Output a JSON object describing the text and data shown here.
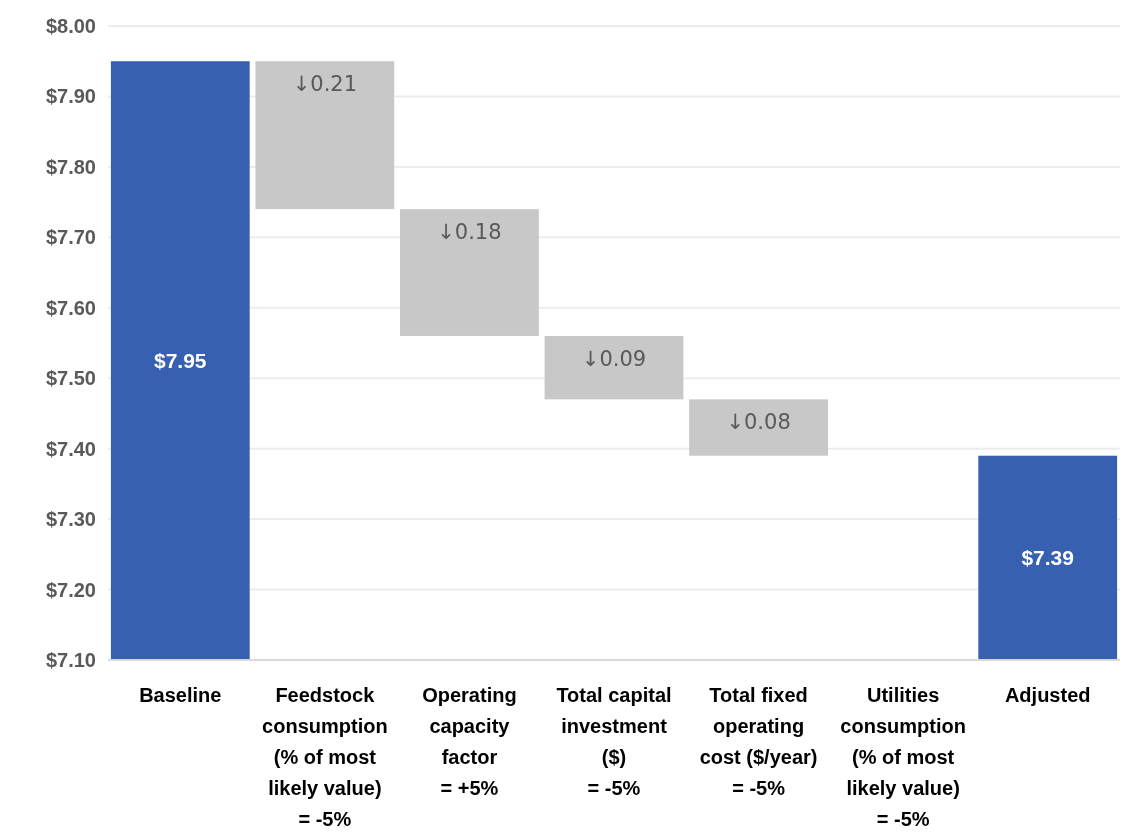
{
  "chart_data": {
    "type": "bar",
    "categories": [
      "Baseline",
      "Feedstock consumption (% of most likely value) = -5%",
      "Operating capacity factor = +5%",
      "Total capital investment ($) = -5%",
      "Total fixed operating cost ($/year) = -5%",
      "Utilities consumption (% of most likely value) = -5%",
      "Adjusted"
    ],
    "values": [
      7.95,
      -0.21,
      -0.18,
      -0.09,
      -0.08,
      null,
      7.39
    ],
    "base": [
      null,
      7.95,
      7.74,
      7.56,
      7.47,
      null,
      null
    ],
    "colors": [
      "#3760b0",
      "#c8c8c8",
      "#c8c8c8",
      "#c8c8c8",
      "#c8c8c8",
      null,
      "#3760b0"
    ],
    "value_labels": [
      "$7.95",
      "↓0.21",
      "↓0.18",
      "↓0.09",
      "↓0.08",
      null,
      "$7.39"
    ],
    "ylim": [
      7.1,
      8.0
    ],
    "yticks": [
      {
        "value": 7.1,
        "label": "$7.10"
      },
      {
        "value": 7.2,
        "label": "$7.20"
      },
      {
        "value": 7.3,
        "label": "$7.30"
      },
      {
        "value": 7.4,
        "label": "$7.40"
      },
      {
        "value": 7.5,
        "label": "$7.50"
      },
      {
        "value": 7.6,
        "label": "$7.60"
      },
      {
        "value": 7.7,
        "label": "$7.70"
      },
      {
        "value": 7.8,
        "label": "$7.80"
      },
      {
        "value": 7.9,
        "label": "$7.90"
      },
      {
        "value": 8.0,
        "label": "$8.00"
      }
    ],
    "grid": "y"
  }
}
